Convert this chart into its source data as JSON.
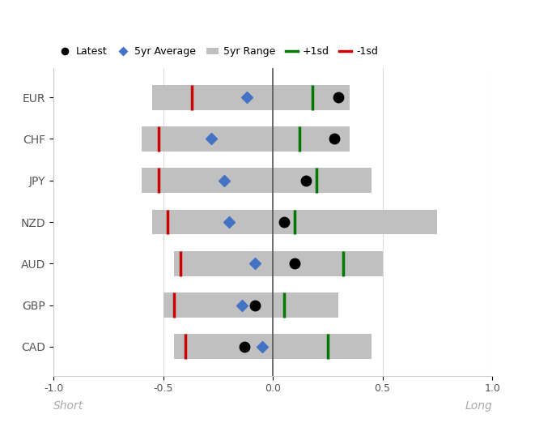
{
  "currencies": [
    "EUR",
    "CHF",
    "JPY",
    "NZD",
    "AUD",
    "GBP",
    "CAD"
  ],
  "range_min": [
    -0.55,
    -0.6,
    -0.6,
    -0.55,
    -0.45,
    -0.5,
    -0.45
  ],
  "range_max": [
    0.35,
    0.35,
    0.45,
    0.75,
    0.5,
    0.3,
    0.45
  ],
  "avg_5yr": [
    -0.12,
    -0.28,
    -0.22,
    -0.2,
    -0.08,
    -0.14,
    -0.05
  ],
  "latest": [
    0.3,
    0.28,
    0.15,
    0.05,
    0.1,
    -0.08,
    -0.13
  ],
  "plus1sd": [
    0.18,
    0.12,
    0.2,
    0.1,
    0.32,
    0.05,
    0.25
  ],
  "minus1sd": [
    -0.37,
    -0.52,
    -0.52,
    -0.48,
    -0.42,
    -0.45,
    -0.4
  ],
  "bar_color": "#c0c0c0",
  "bar_alpha": 1.0,
  "latest_color": "#000000",
  "avg_color": "#4472c4",
  "plus1sd_color": "#007700",
  "minus1sd_color": "#cc0000",
  "bg_color": "#ffffff",
  "xlim": [
    -1.0,
    1.0
  ],
  "xticks": [
    -1.0,
    -0.5,
    0.0,
    0.5,
    1.0
  ],
  "xlabel_short": "Short",
  "xlabel_long": "Long",
  "bar_height": 0.6,
  "figsize": [
    6.61,
    5.27
  ],
  "dpi": 100
}
